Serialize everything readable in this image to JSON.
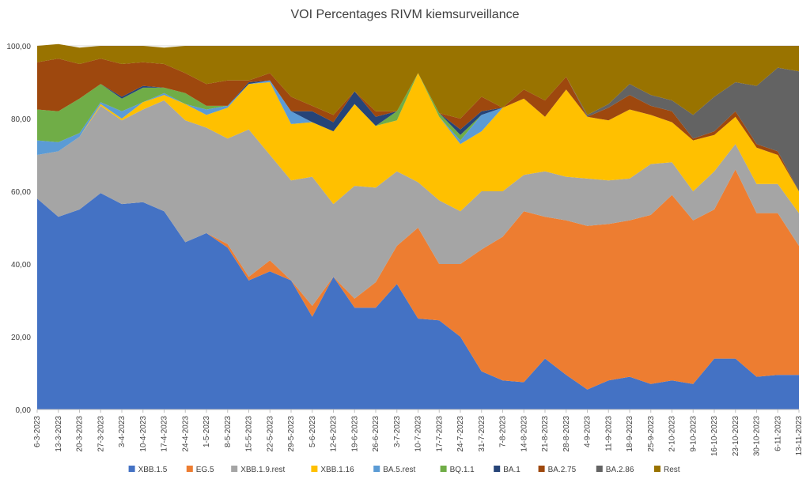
{
  "chart_data": {
    "type": "area",
    "stacked": true,
    "title": "VOI Percentages RIVM kiemsurveillance",
    "xlabel": "",
    "ylabel": "",
    "ylim": [
      0,
      100
    ],
    "y_ticks": [
      "0,00",
      "20,00",
      "40,00",
      "60,00",
      "80,00",
      "100,00"
    ],
    "grid": "horizontal",
    "legend_position": "bottom",
    "categories": [
      "6-3-2023",
      "13-3-2023",
      "20-3-2023",
      "27-3-2023",
      "3-4-2023",
      "10-4-2023",
      "17-4-2023",
      "24-4-2023",
      "1-5-2023",
      "8-5-2023",
      "15-5-2023",
      "22-5-2023",
      "29-5-2023",
      "5-6-2023",
      "12-6-2023",
      "19-6-2023",
      "26-6-2023",
      "3-7-2023",
      "10-7-2023",
      "17-7-2023",
      "24-7-2023",
      "31-7-2023",
      "7-8-2023",
      "14-8-2023",
      "21-8-2023",
      "28-8-2023",
      "4-9-2023",
      "11-9-2023",
      "18-9-2023",
      "25-9-2023",
      "2-10-2023",
      "9-10-2023",
      "16-10-2023",
      "23-10-2023",
      "30-10-2023",
      "6-11-2023",
      "13-11-2023"
    ],
    "series": [
      {
        "name": "XBB.1.5",
        "color": "#4472C4",
        "values": [
          58,
          53,
          55,
          59.5,
          56.5,
          57,
          54.5,
          46,
          48.5,
          44.5,
          35.5,
          38,
          35.5,
          25.5,
          36.5,
          28,
          28,
          34.5,
          25,
          24.5,
          20,
          10.5,
          8,
          7.5,
          14,
          9.5,
          5.5,
          8,
          9,
          7,
          8,
          7,
          14,
          14,
          9,
          9.5,
          9.5
        ]
      },
      {
        "name": "EG.5",
        "color": "#ED7D31",
        "values": [
          0,
          0,
          0,
          0,
          0,
          0,
          0,
          0,
          0,
          1,
          1,
          3,
          0,
          3,
          0,
          2.5,
          7,
          10.5,
          25,
          15.5,
          20,
          33.5,
          39.5,
          47,
          39,
          42.5,
          45,
          43,
          43,
          46.5,
          51,
          45,
          41,
          52,
          45,
          44.5,
          35.5
        ]
      },
      {
        "name": "XBB.1.9.rest",
        "color": "#A5A5A5",
        "values": [
          12,
          18,
          20,
          24,
          23,
          25.5,
          30.5,
          33.5,
          29,
          29,
          40.5,
          29,
          27.5,
          35.5,
          20,
          31,
          26,
          20.5,
          12.5,
          17.5,
          14.5,
          16,
          12.5,
          10,
          12.5,
          12,
          13,
          12,
          11.5,
          14,
          9,
          8,
          10.5,
          7,
          8,
          8,
          9
        ]
      },
      {
        "name": "XBB.1.16",
        "color": "#FFC000",
        "values": [
          0,
          0,
          0,
          0.5,
          0.5,
          2,
          1.5,
          4.5,
          3.5,
          8.5,
          12.5,
          20,
          15.5,
          15,
          20,
          22.5,
          17,
          14,
          30,
          23,
          18.5,
          16.5,
          23,
          21,
          15,
          24,
          17,
          16.5,
          19,
          13.5,
          11,
          14,
          10,
          7.5,
          10,
          8,
          6
        ]
      },
      {
        "name": "BA.5.rest",
        "color": "#5B9BD5",
        "values": [
          4,
          2.5,
          1,
          0.5,
          2,
          0,
          0.5,
          0,
          1.5,
          0.5,
          0,
          0.5,
          3.5,
          0,
          0,
          0,
          0,
          0,
          0,
          0,
          1,
          4.5,
          0,
          0,
          0,
          0,
          0,
          0,
          0,
          0,
          0,
          0,
          0,
          0,
          0,
          0,
          0
        ]
      },
      {
        "name": "BQ.1.1",
        "color": "#70AD47",
        "values": [
          8.5,
          8.5,
          9.5,
          5,
          3.5,
          4,
          1.5,
          3,
          1,
          0,
          0,
          0,
          0,
          0,
          0,
          0,
          0,
          2.5,
          0,
          1,
          1.5,
          0,
          0,
          0,
          0,
          0,
          0,
          0,
          0,
          0,
          0,
          0,
          0,
          0,
          0,
          0,
          0
        ]
      },
      {
        "name": "BA.1",
        "color": "#264478",
        "values": [
          0,
          0,
          0,
          0,
          0.5,
          0.5,
          0,
          0,
          0,
          0,
          0.5,
          0,
          0,
          3,
          2.5,
          3.5,
          2.5,
          0,
          0,
          0,
          1.5,
          1,
          0,
          0,
          0,
          0,
          0,
          0,
          0,
          0,
          0,
          0,
          0,
          0,
          0,
          0,
          0
        ]
      },
      {
        "name": "BA.2.75",
        "color": "#9E480E",
        "values": [
          13,
          14.5,
          9.5,
          7,
          9,
          6.5,
          6.5,
          5.5,
          6,
          7,
          0.5,
          2,
          4,
          1.5,
          2,
          0,
          1.5,
          0,
          0,
          0,
          3,
          4,
          0,
          2.5,
          4.5,
          3.5,
          0,
          3.5,
          4,
          2.5,
          3,
          0.5,
          1,
          1.5,
          1,
          1,
          0
        ]
      },
      {
        "name": "BA.2.86",
        "color": "#636363",
        "values": [
          0,
          0,
          0,
          0,
          0,
          0,
          0,
          0,
          0,
          0,
          0,
          0,
          0,
          0,
          0,
          0,
          0,
          0,
          0,
          0,
          0,
          0,
          0,
          0,
          0,
          0,
          0.5,
          1,
          3,
          3,
          3,
          6.5,
          9.5,
          8,
          16,
          23,
          33
        ]
      },
      {
        "name": "Rest",
        "color": "#997300",
        "values": [
          4.5,
          4,
          4.5,
          3.5,
          5,
          4.5,
          4.5,
          7.5,
          10.5,
          9.5,
          9.5,
          7.5,
          14,
          16.5,
          19,
          12.5,
          18,
          18,
          7.5,
          18.5,
          20,
          14,
          17,
          12,
          15,
          8.5,
          19,
          16,
          10.5,
          13.5,
          15,
          19,
          14,
          10,
          11,
          6,
          7
        ]
      }
    ]
  }
}
